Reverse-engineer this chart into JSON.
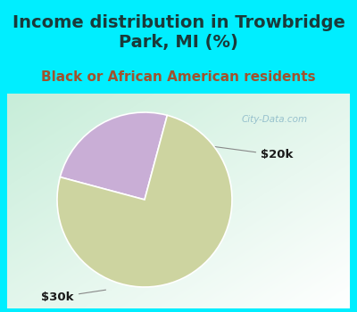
{
  "title": "Income distribution in Trowbridge\nPark, MI (%)",
  "subtitle": "Black or African American residents",
  "slices": [
    {
      "label": "$20k",
      "value": 25,
      "color": "#c9aed6"
    },
    {
      "label": "$30k",
      "value": 75,
      "color": "#cdd4a0"
    }
  ],
  "title_color": "#1a3a3a",
  "subtitle_color": "#a0522d",
  "title_fontsize": 14,
  "subtitle_fontsize": 11,
  "bg_color": "#00eeff",
  "chart_bg_colors": [
    "#c8eedd",
    "#d8f0e8",
    "#e8f8f0",
    "#f0faf8",
    "#ffffff"
  ],
  "watermark": "City-Data.com",
  "startangle": 75,
  "pie_pct_20k": 25,
  "pie_pct_30k": 75
}
